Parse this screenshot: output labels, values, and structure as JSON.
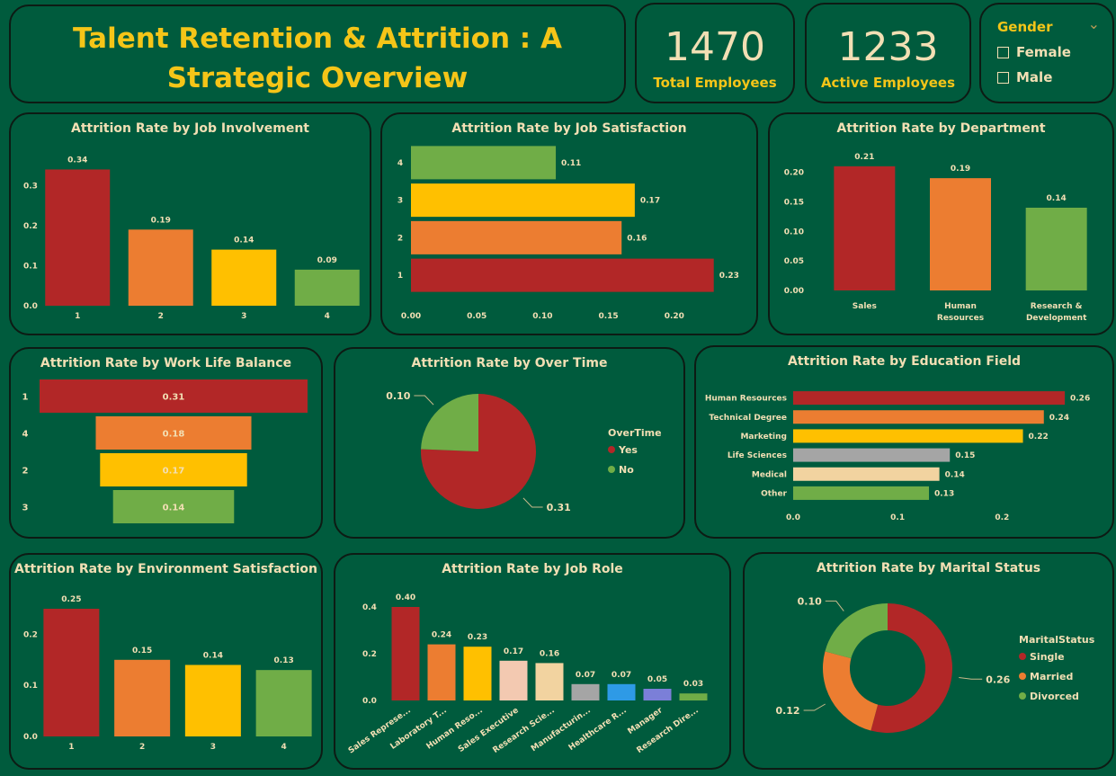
{
  "title": "Talent Retention & Attrition : A Strategic Overview",
  "kpis": {
    "total": {
      "value": "1470",
      "label": "Total Employees"
    },
    "active": {
      "value": "1233",
      "label": "Active Employees"
    }
  },
  "slicer": {
    "title": "Gender",
    "options": [
      "Female",
      "Male"
    ]
  },
  "colors": {
    "red": "#b22727",
    "orange": "#ec7d31",
    "yellow": "#ffc000",
    "green": "#70ad47",
    "grey": "#a5a5a5",
    "peach": "#f3c9b1",
    "tan": "#f2d3a0",
    "blue": "#2e9ae6",
    "lavender": "#7b7fd8",
    "text": "#f2dfb4",
    "title": "#f5c518"
  },
  "chart_data": [
    {
      "id": "job_involvement",
      "type": "bar",
      "title": "Attrition Rate by Job Involvement",
      "categories": [
        "1",
        "2",
        "3",
        "4"
      ],
      "values": [
        0.34,
        0.19,
        0.14,
        0.09
      ],
      "labels": [
        "0.34",
        "0.19",
        "0.14",
        "0.09"
      ],
      "ylim": [
        0,
        0.35
      ],
      "ticks": [
        "0.0",
        "0.1",
        "0.2",
        "0.3"
      ]
    },
    {
      "id": "job_satisfaction",
      "type": "bar",
      "orientation": "horizontal",
      "title": "Attrition Rate by Job Satisfaction",
      "categories": [
        "4",
        "3",
        "2",
        "1"
      ],
      "values": [
        0.11,
        0.17,
        0.16,
        0.23
      ],
      "labels": [
        "0.11",
        "0.17",
        "0.16",
        "0.23"
      ],
      "xlim": [
        0,
        0.25
      ],
      "ticks": [
        "0.00",
        "0.05",
        "0.10",
        "0.15",
        "0.20"
      ]
    },
    {
      "id": "department",
      "type": "bar",
      "title": "Attrition Rate by Department",
      "categories": [
        "Sales",
        "Human Resources",
        "Research & Development"
      ],
      "values": [
        0.21,
        0.19,
        0.14
      ],
      "labels": [
        "0.21",
        "0.19",
        "0.14"
      ],
      "ylim": [
        0,
        0.21
      ],
      "ticks": [
        "0.00",
        "0.05",
        "0.10",
        "0.15",
        "0.20"
      ]
    },
    {
      "id": "work_life_balance",
      "type": "funnel",
      "title": "Attrition Rate by Work Life Balance",
      "categories": [
        "1",
        "4",
        "2",
        "3"
      ],
      "values": [
        0.31,
        0.18,
        0.17,
        0.14
      ],
      "labels": [
        "0.31",
        "0.18",
        "0.17",
        "0.14"
      ]
    },
    {
      "id": "over_time",
      "type": "pie",
      "title": "Attrition Rate by Over Time",
      "legend_title": "OverTime",
      "categories": [
        "Yes",
        "No"
      ],
      "values": [
        0.31,
        0.1
      ],
      "labels": [
        "0.31",
        "0.10"
      ],
      "legend": "right"
    },
    {
      "id": "education_field",
      "type": "bar",
      "orientation": "horizontal",
      "title": "Attrition Rate by Education Field",
      "categories": [
        "Human Resources",
        "Technical Degree",
        "Marketing",
        "Life Sciences",
        "Medical",
        "Other"
      ],
      "values": [
        0.26,
        0.24,
        0.22,
        0.15,
        0.14,
        0.13
      ],
      "labels": [
        "0.26",
        "0.24",
        "0.22",
        "0.15",
        "0.14",
        "0.13"
      ],
      "xlim": [
        0,
        0.26
      ],
      "ticks": [
        "0.0",
        "0.1",
        "0.2"
      ]
    },
    {
      "id": "environment_satisfaction",
      "type": "bar",
      "title": "Attrition Rate by Environment Satisfaction",
      "categories": [
        "1",
        "2",
        "3",
        "4"
      ],
      "values": [
        0.25,
        0.15,
        0.14,
        0.13
      ],
      "labels": [
        "0.25",
        "0.15",
        "0.14",
        "0.13"
      ],
      "ylim": [
        0,
        0.25
      ],
      "ticks": [
        "0.0",
        "0.1",
        "0.2"
      ]
    },
    {
      "id": "job_role",
      "type": "bar",
      "title": "Attrition Rate by Job Role",
      "categories": [
        "Sales Represe...",
        "Laboratory T...",
        "Human Reso...",
        "Sales Executive",
        "Research Scie...",
        "Manufacturin...",
        "Healthcare R...",
        "Manager",
        "Research Dire..."
      ],
      "values": [
        0.4,
        0.24,
        0.23,
        0.17,
        0.16,
        0.07,
        0.07,
        0.05,
        0.03
      ],
      "labels": [
        "0.40",
        "0.24",
        "0.23",
        "0.17",
        "0.16",
        "0.07",
        "0.07",
        "0.05",
        "0.03"
      ],
      "ylim": [
        0,
        0.4
      ],
      "ticks": [
        "0.0",
        "0.2",
        "0.4"
      ]
    },
    {
      "id": "marital_status",
      "type": "donut",
      "title": "Attrition Rate by Marital Status",
      "legend_title": "MaritalStatus",
      "categories": [
        "Single",
        "Married",
        "Divorced"
      ],
      "values": [
        0.26,
        0.12,
        0.1
      ],
      "labels": [
        "0.26",
        "0.12",
        "0.10"
      ],
      "legend": "right"
    }
  ]
}
